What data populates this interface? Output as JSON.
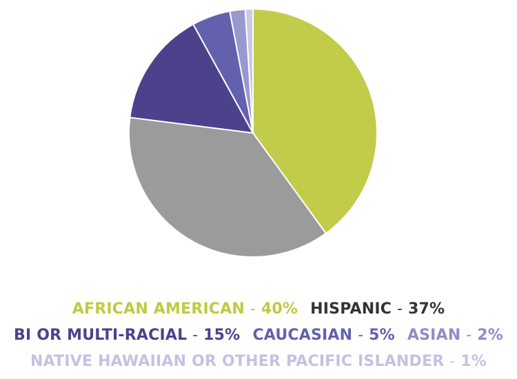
{
  "chart_data": {
    "type": "pie",
    "slices": [
      {
        "label": "AFRICAN AMERICAN",
        "value": 40,
        "value_text": "40%",
        "color": "#c3cb4a",
        "legend_color": "#bfca3f"
      },
      {
        "label": "HISPANIC",
        "value": 37,
        "value_text": "37%",
        "color": "#9a9b9a",
        "legend_color": "#333333"
      },
      {
        "label": "BI OR MULTI-RACIAL",
        "value": 15,
        "value_text": "15%",
        "color": "#4b418d",
        "legend_color": "#4b418d"
      },
      {
        "label": "CAUCASIAN",
        "value": 5,
        "value_text": "5%",
        "color": "#6361ae",
        "legend_color": "#6361ae"
      },
      {
        "label": "ASIAN",
        "value": 2,
        "value_text": "2%",
        "color": "#9a98cf",
        "legend_color": "#8e8cc8"
      },
      {
        "label": "NATIVE HAWAIIAN OR OTHER PACIFIC ISLANDER",
        "value": 1,
        "value_text": "1%",
        "color": "#c9c8e6",
        "legend_color": "#c3c2e3"
      }
    ],
    "separator": "-",
    "legend_placement": "bottom",
    "legend_rows": [
      [
        0,
        1
      ],
      [
        2,
        3,
        4
      ],
      [
        5
      ]
    ]
  }
}
